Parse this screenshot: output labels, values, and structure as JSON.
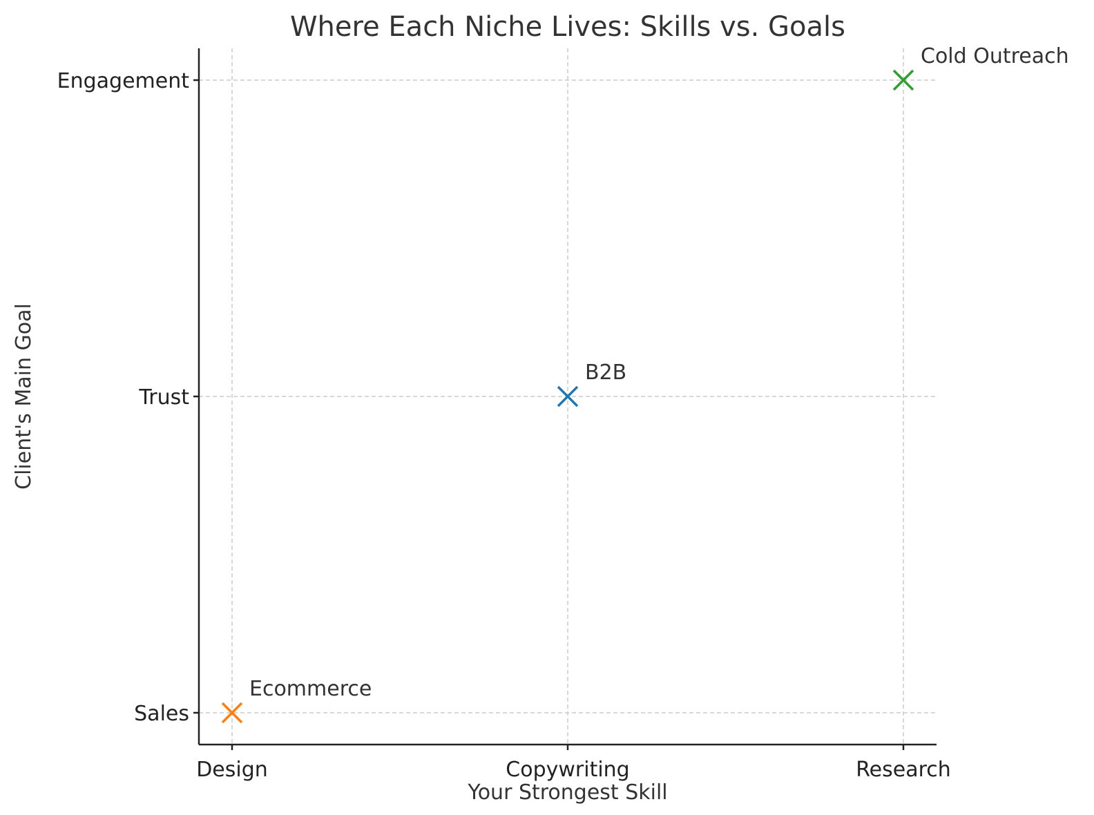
{
  "chart_data": {
    "type": "scatter",
    "title": "Where Each Niche Lives: Skills vs. Goals",
    "xlabel": "Your Strongest Skill",
    "ylabel": "Client's Main Goal",
    "x_categories": [
      "Design",
      "Copywriting",
      "Research"
    ],
    "y_categories": [
      "Sales",
      "Trust",
      "Engagement"
    ],
    "grid": true,
    "marker": "x",
    "points": [
      {
        "label": "B2B",
        "x": "Copywriting",
        "y": "Trust",
        "color": "#1f77b4"
      },
      {
        "label": "Ecommerce",
        "x": "Design",
        "y": "Sales",
        "color": "#ff7f0e"
      },
      {
        "label": "Cold Outreach",
        "x": "Research",
        "y": "Engagement",
        "color": "#2ca02c"
      }
    ]
  }
}
